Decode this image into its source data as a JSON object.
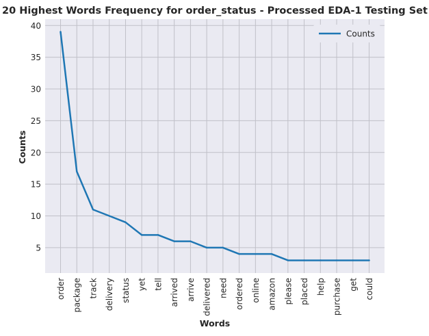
{
  "chart_data": {
    "type": "line",
    "title": "20 Highest Words Frequency for order_status - Processed EDA-1 Testing Set",
    "xlabel": "Words",
    "ylabel": "Counts",
    "categories": [
      "order",
      "package",
      "track",
      "delivery",
      "status",
      "yet",
      "tell",
      "arrived",
      "arrive",
      "delivered",
      "need",
      "ordered",
      "online",
      "amazon",
      "please",
      "placed",
      "help",
      "purchase",
      "get",
      "could"
    ],
    "series": [
      {
        "name": "Counts",
        "values": [
          39,
          17,
          11,
          10,
          9,
          7,
          7,
          6,
          6,
          5,
          5,
          4,
          4,
          4,
          3,
          3,
          3,
          3,
          3,
          3
        ],
        "color": "#1f77b4"
      }
    ],
    "ylim": [
      1,
      41
    ],
    "yticks": [
      5,
      10,
      15,
      20,
      25,
      30,
      35,
      40
    ],
    "grid": true,
    "legend_position": "top-right",
    "background_color": "#eaeaf2",
    "grid_color": "#c0c0c8"
  }
}
